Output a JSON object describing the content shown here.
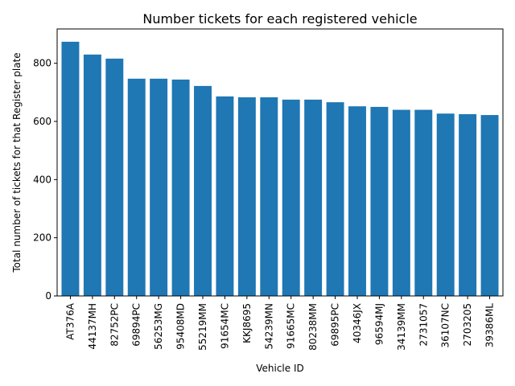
{
  "chart_data": {
    "type": "bar",
    "title": "Number tickets for each registered vehicle",
    "xlabel": "Vehicle ID",
    "ylabel": "Total number of tickets for that Register plate",
    "categories": [
      "AT376A",
      "44137MH",
      "82752PC",
      "69894PC",
      "56253MG",
      "95408MD",
      "55219MM",
      "91654MC",
      "KKJ8695",
      "54239MN",
      "91665MC",
      "80238MM",
      "69895PC",
      "40346JX",
      "96594MJ",
      "34139MM",
      "2731057",
      "36107NC",
      "2703205",
      "39386ML"
    ],
    "values": [
      874,
      830,
      816,
      747,
      747,
      744,
      722,
      686,
      683,
      683,
      675,
      675,
      666,
      652,
      650,
      640,
      640,
      627,
      625,
      622
    ],
    "yticks": [
      0,
      200,
      400,
      600,
      800
    ],
    "ylim": [
      0,
      918
    ],
    "bar_color": "#1f77b4",
    "grid": false,
    "legend": "none"
  }
}
